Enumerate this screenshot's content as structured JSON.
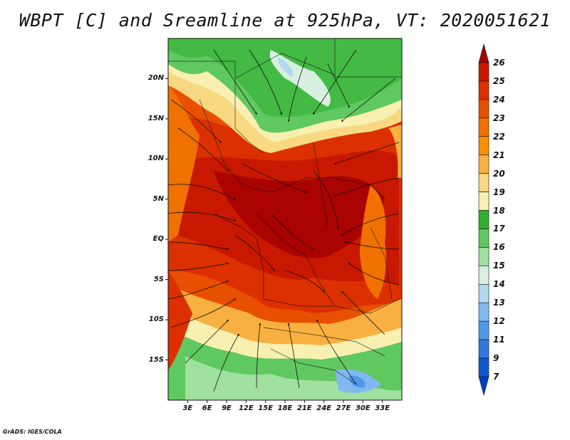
{
  "title": "WBPT [C] and Sreamline at 925hPa, VT: 2020051621",
  "credit": "GrADS: IGES/COLA",
  "map": {
    "lon_range": [
      0,
      36
    ],
    "lat_range": [
      -20,
      25
    ],
    "lat_ticks": [
      "20N",
      "15N",
      "10N",
      "5N",
      "EQ",
      "5S",
      "10S",
      "15S"
    ],
    "lat_tick_values": [
      20,
      15,
      10,
      5,
      0,
      -5,
      -10,
      -15
    ],
    "lon_ticks": [
      "3E",
      "6E",
      "9E",
      "12E",
      "15E",
      "18E",
      "21E",
      "24E",
      "27E",
      "30E",
      "33E"
    ],
    "lon_tick_values": [
      3,
      6,
      9,
      12,
      15,
      18,
      21,
      24,
      27,
      30,
      33
    ]
  },
  "colorbar": {
    "levels": [
      "26",
      "25",
      "24",
      "23",
      "22",
      "21",
      "20",
      "19",
      "18",
      "17",
      "16",
      "15",
      "14",
      "13",
      "12",
      "11",
      "9",
      "7"
    ],
    "colors": [
      "#a50000",
      "#c81800",
      "#dc3000",
      "#e85000",
      "#f07000",
      "#f89000",
      "#f8b040",
      "#f8d880",
      "#f8f0b0",
      "#30b030",
      "#60c860",
      "#a0e0a0",
      "#d8f0e0",
      "#b0d8f0",
      "#80b8f0",
      "#5098e8",
      "#3078e0",
      "#1058d0",
      "#0040c0"
    ]
  }
}
